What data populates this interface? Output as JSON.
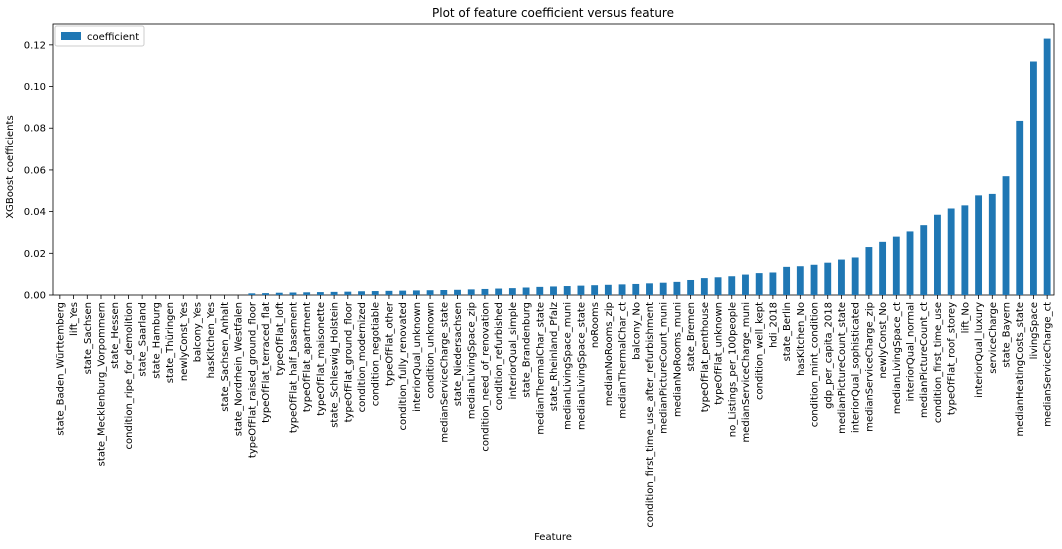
{
  "chart_data": {
    "type": "bar",
    "title": "Plot of feature coefficient versus feature",
    "xlabel": "Feature",
    "ylabel": "XGBoost coefficients",
    "ylim": [
      0,
      0.13
    ],
    "yticks": [
      "0.00",
      "0.02",
      "0.04",
      "0.06",
      "0.08",
      "0.10",
      "0.12"
    ],
    "grid": false,
    "legend_position": "top-left",
    "bar_color": "#1f77b4",
    "series": [
      {
        "name": "coefficient"
      }
    ],
    "categories": [
      "state_Baden_Württemberg",
      "lift_Yes",
      "state_Sachsen",
      "state_Mecklenburg_Vorpommern",
      "state_Hessen",
      "condition_ripe_for_demolition",
      "state_Saarland",
      "state_Hamburg",
      "state_Thüringen",
      "newlyConst_Yes",
      "balcony_Yes",
      "hasKitchen_Yes",
      "state_Sachsen_Anhalt",
      "state_Nordrhein_Westfalen",
      "typeOfFlat_raised_ground_floor",
      "typeOfFlat_terraced_flat",
      "typeOfFlat_loft",
      "typeOfFlat_half_basement",
      "typeOfFlat_apartment",
      "typeOfFlat_maisonette",
      "state_Schleswig_Holstein",
      "typeOfFlat_ground_floor",
      "condition_modernized",
      "condition_negotiable",
      "typeOfFlat_other",
      "condition_fully_renovated",
      "interiorQual_unknown",
      "condition_unknown",
      "medianServiceCharge_state",
      "state_Niedersachsen",
      "medianLivingSpace_zip",
      "condition_need_of_renovation",
      "condition_refurbished",
      "interiorQual_simple",
      "state_Brandenburg",
      "medianThermalChar_state",
      "state_Rheinland_Pfalz",
      "medianLivingSpace_muni",
      "medianLivingSpace_state",
      "noRooms",
      "medianNoRooms_zip",
      "medianThermalChar_ct",
      "balcony_No",
      "condition_first_time_use_after_refurbishment",
      "medianPictureCount_muni",
      "medianNoRooms_muni",
      "state_Bremen",
      "typeOfFlat_penthouse",
      "typeOfFlat_unknown",
      "no_Listings_per_100people",
      "medianServiceCharge_muni",
      "condition_well_kept",
      "hdi_2018",
      "state_Berlin",
      "hasKitchen_No",
      "condition_mint_condition",
      "gdp_per_capita_2018",
      "medianPictureCount_state",
      "interiorQual_sophisticated",
      "medianServiceCharge_zip",
      "newlyConst_No",
      "medianLivingSpace_ct",
      "interiorQual_normal",
      "medianPictureCount_ct",
      "condition_first_time_use",
      "typeOfFlat_roof_storey",
      "lift_No",
      "interiorQual_luxury",
      "serviceCharge",
      "state_Bayern",
      "medianHeatingCosts_state",
      "livingSpace",
      "medianServiceCharge_ct"
    ],
    "values": [
      0,
      0,
      0,
      0,
      0,
      0,
      0,
      0,
      0,
      0,
      0,
      0,
      0,
      0,
      0.0008,
      0.0009,
      0.0011,
      0.0012,
      0.0013,
      0.0014,
      0.0015,
      0.0016,
      0.0018,
      0.0019,
      0.002,
      0.0021,
      0.0022,
      0.0023,
      0.0024,
      0.0025,
      0.0027,
      0.0029,
      0.0031,
      0.0033,
      0.0036,
      0.0039,
      0.0041,
      0.0043,
      0.0045,
      0.0047,
      0.0049,
      0.0051,
      0.0053,
      0.0056,
      0.0059,
      0.0063,
      0.0072,
      0.0081,
      0.0085,
      0.009,
      0.0098,
      0.0105,
      0.0108,
      0.0135,
      0.0138,
      0.0145,
      0.0155,
      0.017,
      0.018,
      0.023,
      0.0255,
      0.028,
      0.0305,
      0.0335,
      0.0385,
      0.0415,
      0.043,
      0.0478,
      0.0485,
      0.057,
      0.0835,
      0.112,
      0.123
    ]
  }
}
